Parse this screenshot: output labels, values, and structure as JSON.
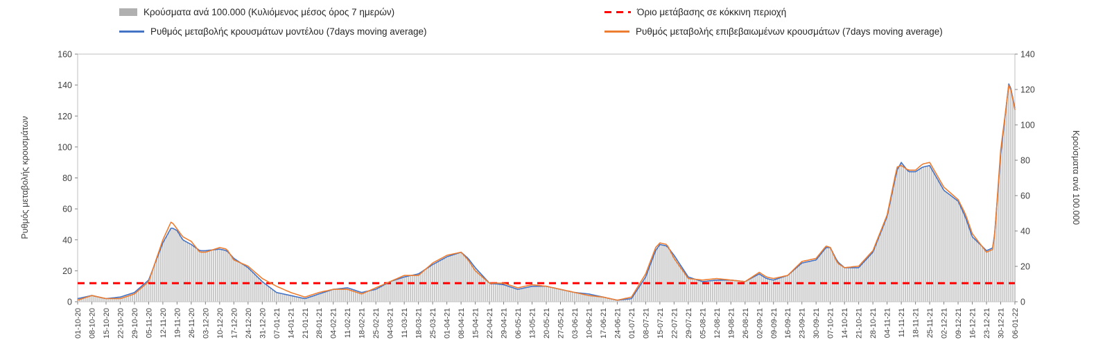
{
  "colors": {
    "bars": "#c9c9c9",
    "model": "#4472c4",
    "confirmed": "#ed7d31",
    "threshold": "#ff0000",
    "axis_line": "#bfbfbf",
    "tick": "#808080",
    "tick_text": "#404040"
  },
  "chart_data": {
    "type": "composite",
    "subtype": "daily bars with two 7-day moving-average lines and a dashed threshold line",
    "threshold": {
      "label": "Όριο μετάβασης σε κόκκινη περιοχή",
      "value_left_axis": 12
    },
    "axes": {
      "left_title": "Ρυθμός μεταβολής κρουσμάτων",
      "right_title": "Κρούσματα ανά 100.000",
      "left_max": 160,
      "right_max": 140,
      "left_ticks": [
        0,
        20,
        40,
        60,
        80,
        100,
        120,
        140,
        160
      ],
      "right_ticks": [
        0,
        20,
        40,
        60,
        80,
        100,
        120,
        140
      ],
      "grid": false,
      "legend_position": "top"
    },
    "categories": [
      "01-10-20",
      "08-10-20",
      "15-10-20",
      "22-10-20",
      "29-10-20",
      "05-11-20",
      "12-11-20",
      "19-11-20",
      "26-11-20",
      "03-12-20",
      "10-12-20",
      "17-12-20",
      "24-12-20",
      "31-12-20",
      "07-01-21",
      "14-01-21",
      "21-01-21",
      "28-01-21",
      "04-02-21",
      "11-02-21",
      "18-02-21",
      "25-02-21",
      "04-03-21",
      "11-03-21",
      "18-03-21",
      "25-03-21",
      "01-04-21",
      "08-04-21",
      "15-04-21",
      "22-04-21",
      "29-04-21",
      "06-05-21",
      "13-05-21",
      "20-05-21",
      "27-05-21",
      "03-06-21",
      "10-06-21",
      "17-06-21",
      "24-06-21",
      "01-07-21",
      "08-07-21",
      "15-07-21",
      "22-07-21",
      "29-07-21",
      "05-08-21",
      "12-08-21",
      "19-08-21",
      "26-08-21",
      "02-09-21",
      "09-09-21",
      "16-09-21",
      "23-09-21",
      "30-09-21",
      "07-10-21",
      "14-10-21",
      "21-10-21",
      "28-10-21",
      "04-11-21",
      "11-11-21",
      "18-11-21",
      "25-11-21",
      "02-12-21",
      "09-12-21",
      "16-12-21",
      "23-12-21",
      "30-12-21",
      "06-01-22"
    ],
    "series": [
      {
        "name": "Κρούσματα ανά 100.000 (Κυλιόμενος μέσος όρος 7 ημερών)",
        "type": "bar",
        "axis": "right",
        "anchors": [
          [
            0,
            2
          ],
          [
            1,
            4
          ],
          [
            2,
            2
          ],
          [
            3,
            3
          ],
          [
            4,
            5
          ],
          [
            5,
            12
          ],
          [
            6,
            33
          ],
          [
            6.6,
            42
          ],
          [
            7,
            40
          ],
          [
            7.4,
            35
          ],
          [
            8,
            32
          ],
          [
            8.6,
            29
          ],
          [
            9,
            29
          ],
          [
            10,
            30
          ],
          [
            10.5,
            29
          ],
          [
            11,
            25
          ],
          [
            12,
            19
          ],
          [
            13,
            11
          ],
          [
            14,
            5
          ],
          [
            15,
            4
          ],
          [
            16,
            2
          ],
          [
            17,
            4
          ],
          [
            18,
            7
          ],
          [
            19,
            8
          ],
          [
            20,
            5
          ],
          [
            21,
            7
          ],
          [
            22,
            11
          ],
          [
            23,
            14
          ],
          [
            24,
            16
          ],
          [
            25,
            21
          ],
          [
            26,
            25
          ],
          [
            27,
            28
          ],
          [
            27.5,
            25
          ],
          [
            28,
            19
          ],
          [
            29,
            11
          ],
          [
            30,
            10
          ],
          [
            31,
            7
          ],
          [
            32,
            9
          ],
          [
            33,
            9
          ],
          [
            34,
            7
          ],
          [
            35,
            5
          ],
          [
            36,
            4
          ],
          [
            37,
            3
          ],
          [
            38,
            1
          ],
          [
            39,
            2
          ],
          [
            40,
            14
          ],
          [
            40.7,
            29
          ],
          [
            41,
            32
          ],
          [
            41.5,
            32
          ],
          [
            42,
            26
          ],
          [
            43,
            14
          ],
          [
            44,
            11
          ],
          [
            45,
            12
          ],
          [
            46,
            12
          ],
          [
            47,
            11
          ],
          [
            48,
            16
          ],
          [
            48.5,
            13
          ],
          [
            49,
            12
          ],
          [
            50,
            15
          ],
          [
            51,
            22
          ],
          [
            52,
            24
          ],
          [
            52.7,
            31
          ],
          [
            53,
            31
          ],
          [
            53.5,
            23
          ],
          [
            54,
            19
          ],
          [
            55,
            19
          ],
          [
            56,
            28
          ],
          [
            57,
            48
          ],
          [
            57.7,
            74
          ],
          [
            58,
            79
          ],
          [
            58.5,
            74
          ],
          [
            59,
            74
          ],
          [
            59.5,
            76
          ],
          [
            60,
            77
          ],
          [
            60.5,
            70
          ],
          [
            61,
            63
          ],
          [
            62,
            57
          ],
          [
            62.5,
            48
          ],
          [
            63,
            37
          ],
          [
            64,
            29
          ],
          [
            64.5,
            31
          ],
          [
            65,
            83
          ],
          [
            65.6,
            125
          ],
          [
            66,
            109
          ]
        ]
      },
      {
        "name": "Ρυθμός μεταβολής κρουσμάτων μοντέλου (7days moving average)",
        "type": "line",
        "axis": "left",
        "anchors": [
          [
            0,
            2
          ],
          [
            1,
            4
          ],
          [
            2,
            2
          ],
          [
            3,
            3
          ],
          [
            4,
            6
          ],
          [
            5,
            14
          ],
          [
            6,
            38
          ],
          [
            6.6,
            48
          ],
          [
            7,
            46
          ],
          [
            7.4,
            40
          ],
          [
            8,
            37
          ],
          [
            8.6,
            33
          ],
          [
            9,
            33
          ],
          [
            10,
            34
          ],
          [
            10.5,
            33
          ],
          [
            11,
            28
          ],
          [
            12,
            22
          ],
          [
            13,
            13
          ],
          [
            14,
            6
          ],
          [
            15,
            4
          ],
          [
            16,
            2
          ],
          [
            17,
            5
          ],
          [
            18,
            8
          ],
          [
            19,
            9
          ],
          [
            20,
            6
          ],
          [
            21,
            8
          ],
          [
            22,
            13
          ],
          [
            23,
            16
          ],
          [
            24,
            18
          ],
          [
            25,
            24
          ],
          [
            26,
            29
          ],
          [
            27,
            32
          ],
          [
            27.5,
            28
          ],
          [
            28,
            22
          ],
          [
            29,
            12
          ],
          [
            30,
            11
          ],
          [
            31,
            8
          ],
          [
            32,
            10
          ],
          [
            33,
            10
          ],
          [
            34,
            8
          ],
          [
            35,
            6
          ],
          [
            36,
            5
          ],
          [
            37,
            3
          ],
          [
            38,
            1
          ],
          [
            39,
            2
          ],
          [
            40,
            16
          ],
          [
            40.7,
            33
          ],
          [
            41,
            37
          ],
          [
            41.5,
            36
          ],
          [
            42,
            30
          ],
          [
            43,
            16
          ],
          [
            44,
            13
          ],
          [
            45,
            14
          ],
          [
            46,
            14
          ],
          [
            47,
            13
          ],
          [
            48,
            18
          ],
          [
            48.5,
            15
          ],
          [
            49,
            14
          ],
          [
            50,
            17
          ],
          [
            51,
            25
          ],
          [
            52,
            27
          ],
          [
            52.7,
            35
          ],
          [
            53,
            35
          ],
          [
            53.5,
            26
          ],
          [
            54,
            22
          ],
          [
            55,
            22
          ],
          [
            56,
            32
          ],
          [
            57,
            55
          ],
          [
            57.7,
            85
          ],
          [
            58,
            90
          ],
          [
            58.5,
            84
          ],
          [
            59,
            84
          ],
          [
            59.5,
            87
          ],
          [
            60,
            88
          ],
          [
            60.5,
            80
          ],
          [
            61,
            72
          ],
          [
            62,
            65
          ],
          [
            62.5,
            55
          ],
          [
            63,
            42
          ],
          [
            64,
            33
          ],
          [
            64.5,
            35
          ],
          [
            65,
            95
          ],
          [
            65.6,
            143
          ],
          [
            66,
            125
          ]
        ]
      },
      {
        "name": "Ρυθμός μεταβολής επιβεβαιωμένων κρουσμάτων (7days moving average)",
        "type": "line",
        "axis": "left",
        "anchors": [
          [
            0,
            1
          ],
          [
            1,
            4
          ],
          [
            2,
            2
          ],
          [
            3,
            2
          ],
          [
            4,
            5
          ],
          [
            5,
            13
          ],
          [
            6,
            40
          ],
          [
            6.6,
            52
          ],
          [
            7,
            47
          ],
          [
            7.4,
            42
          ],
          [
            8,
            39
          ],
          [
            8.6,
            32
          ],
          [
            9,
            32
          ],
          [
            10,
            35
          ],
          [
            10.5,
            34
          ],
          [
            11,
            27
          ],
          [
            12,
            23
          ],
          [
            13,
            15
          ],
          [
            14,
            10
          ],
          [
            15,
            6
          ],
          [
            16,
            3
          ],
          [
            17,
            6
          ],
          [
            18,
            8
          ],
          [
            19,
            8
          ],
          [
            20,
            5
          ],
          [
            21,
            9
          ],
          [
            22,
            13
          ],
          [
            23,
            17
          ],
          [
            24,
            17
          ],
          [
            25,
            25
          ],
          [
            26,
            30
          ],
          [
            27,
            32
          ],
          [
            27.5,
            27
          ],
          [
            28,
            20
          ],
          [
            29,
            12
          ],
          [
            30,
            12
          ],
          [
            31,
            9
          ],
          [
            32,
            11
          ],
          [
            33,
            10
          ],
          [
            34,
            8
          ],
          [
            35,
            6
          ],
          [
            36,
            4
          ],
          [
            37,
            3
          ],
          [
            38,
            1
          ],
          [
            39,
            3
          ],
          [
            40,
            18
          ],
          [
            40.7,
            35
          ],
          [
            41,
            38
          ],
          [
            41.5,
            37
          ],
          [
            42,
            28
          ],
          [
            43,
            15
          ],
          [
            44,
            14
          ],
          [
            45,
            15
          ],
          [
            46,
            14
          ],
          [
            47,
            13
          ],
          [
            48,
            19
          ],
          [
            48.5,
            16
          ],
          [
            49,
            15
          ],
          [
            50,
            17
          ],
          [
            51,
            26
          ],
          [
            52,
            28
          ],
          [
            52.7,
            36
          ],
          [
            53,
            35
          ],
          [
            53.5,
            25
          ],
          [
            54,
            22
          ],
          [
            55,
            23
          ],
          [
            56,
            33
          ],
          [
            57,
            56
          ],
          [
            57.7,
            87
          ],
          [
            58,
            88
          ],
          [
            58.5,
            85
          ],
          [
            59,
            85
          ],
          [
            59.5,
            89
          ],
          [
            60,
            90
          ],
          [
            60.5,
            82
          ],
          [
            61,
            74
          ],
          [
            62,
            66
          ],
          [
            62.5,
            57
          ],
          [
            63,
            44
          ],
          [
            64,
            32
          ],
          [
            64.5,
            34
          ],
          [
            65,
            98
          ],
          [
            65.6,
            142
          ],
          [
            66,
            124
          ]
        ]
      }
    ]
  }
}
